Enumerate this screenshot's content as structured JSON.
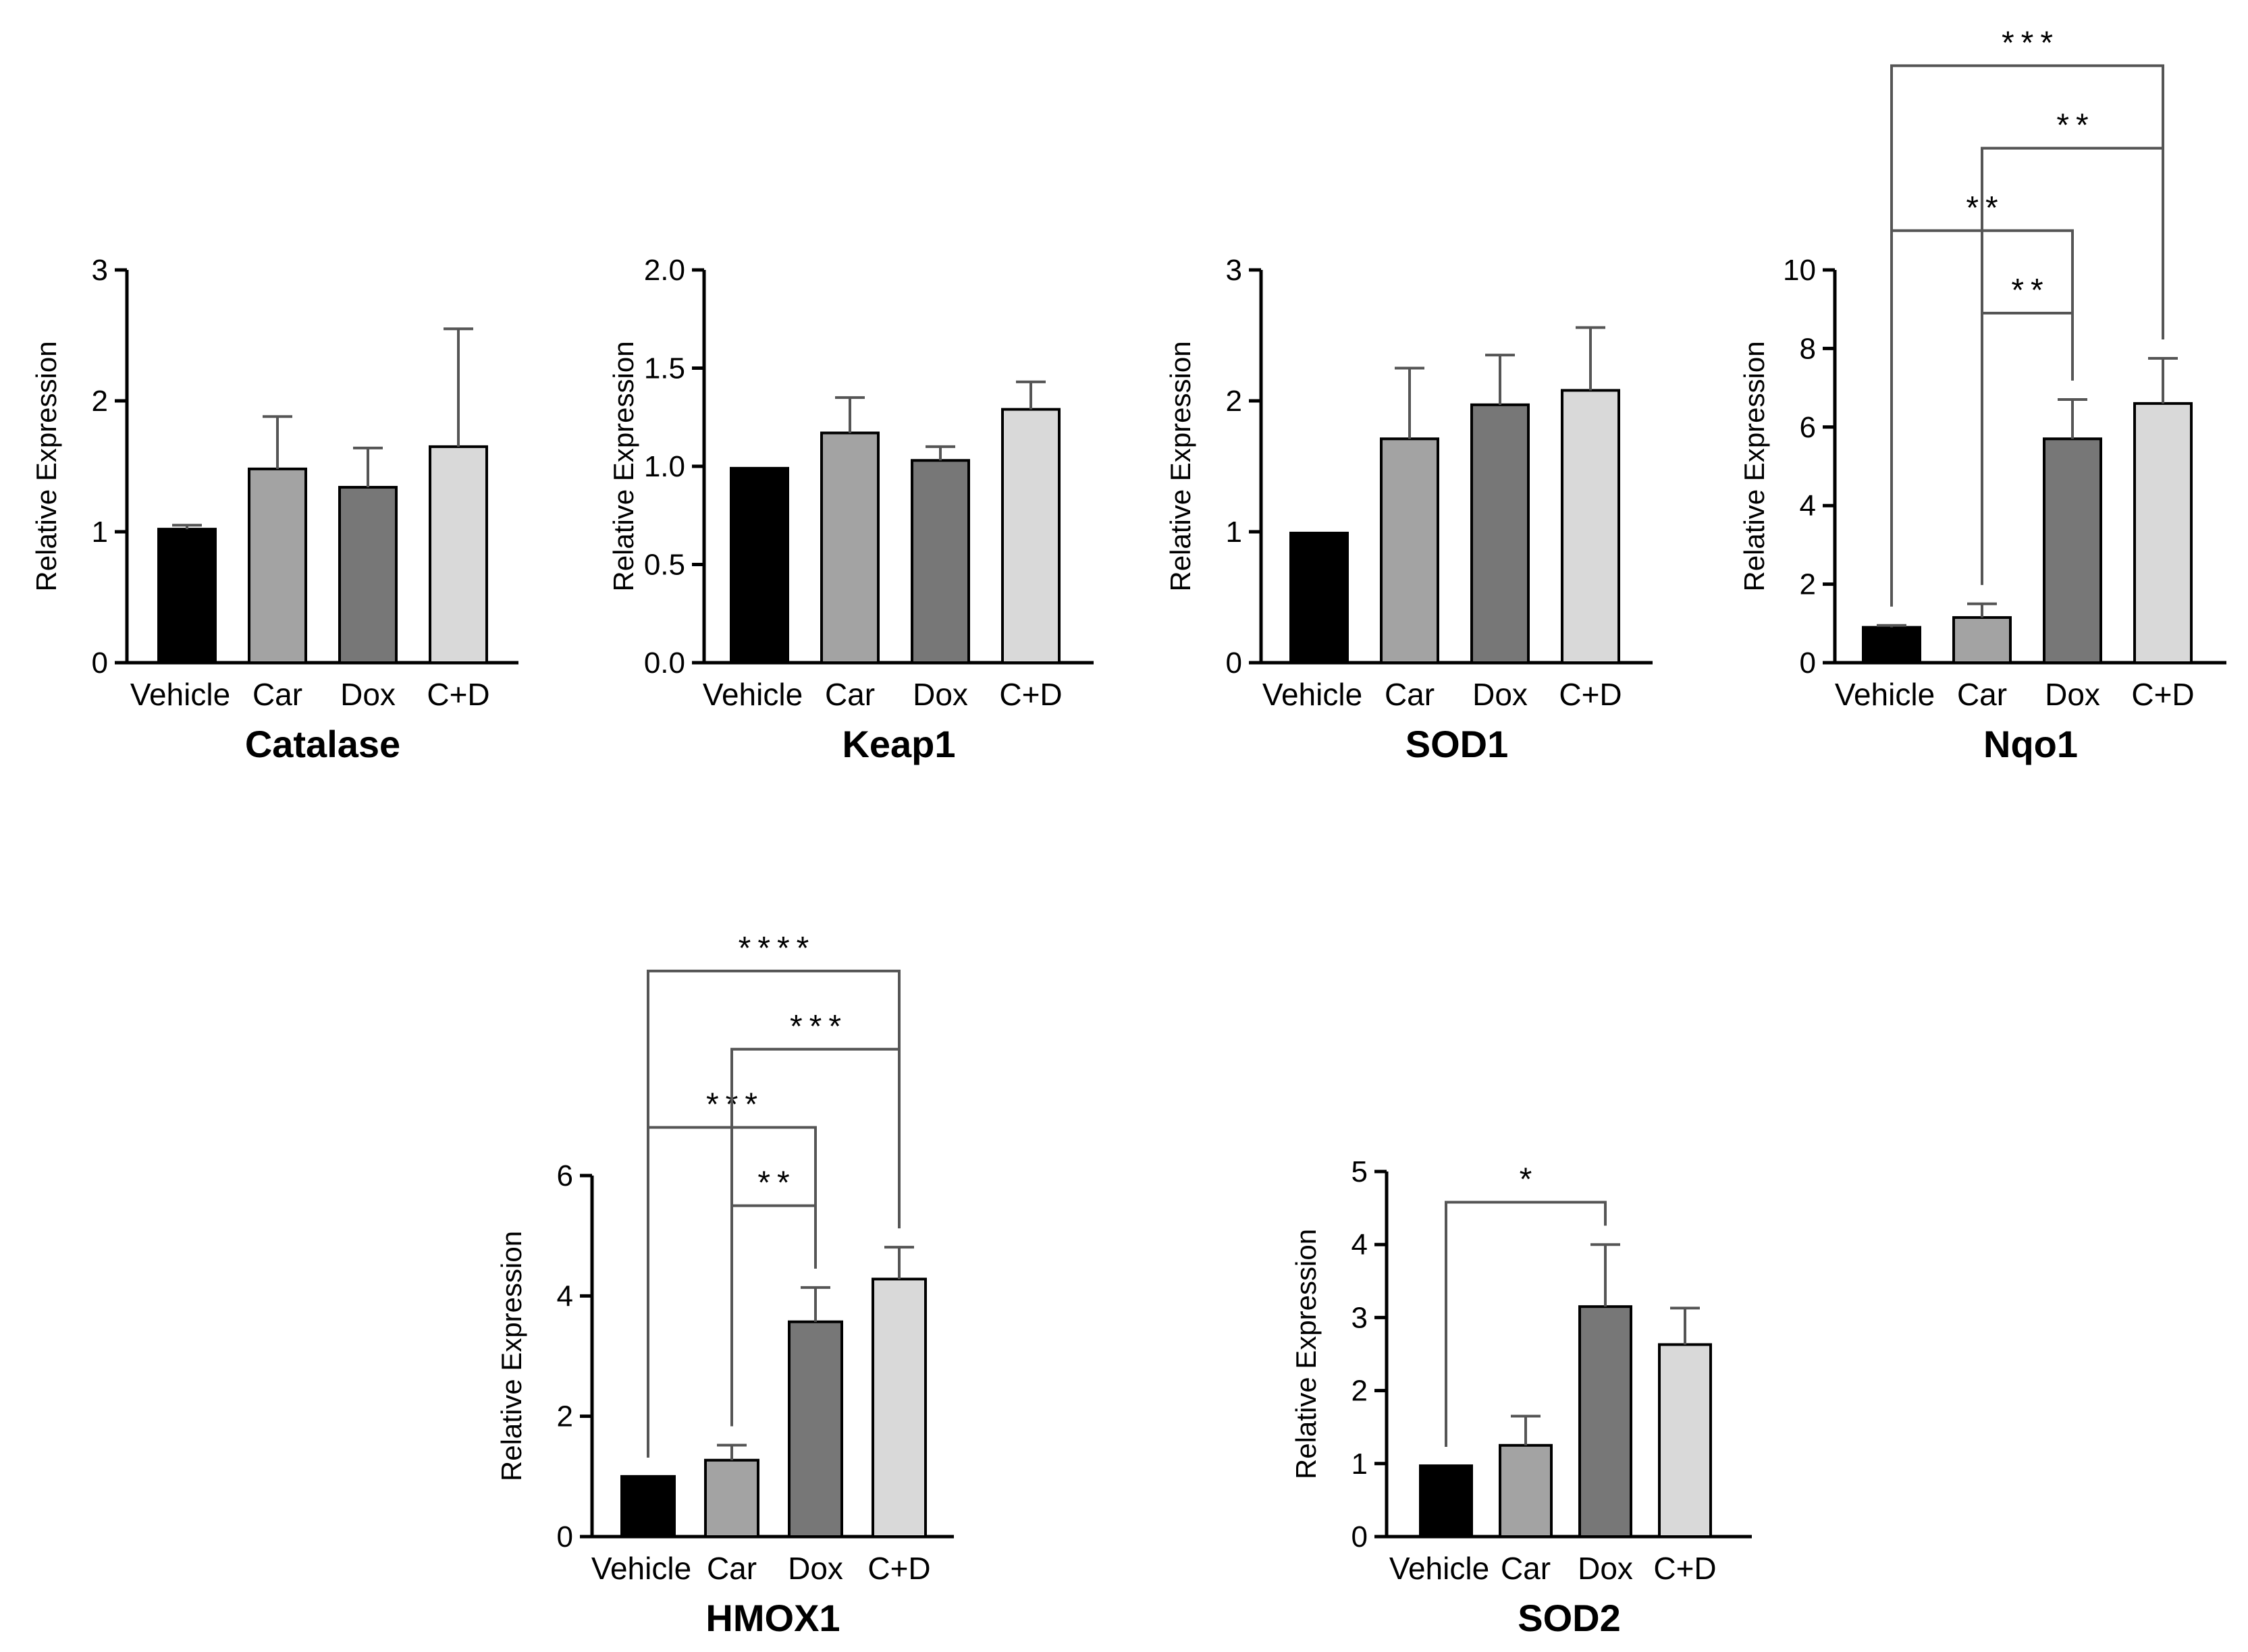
{
  "chart_data": [
    {
      "type": "bar",
      "title": "Catalase",
      "ylabel": "Relative Expression",
      "xlabel": "",
      "categories": [
        "Vehicle",
        "Car",
        "Dox",
        "C+D"
      ],
      "values": [
        1.02,
        1.48,
        1.34,
        1.65
      ],
      "errors": [
        0.03,
        0.4,
        0.3,
        0.9
      ],
      "ylim": [
        0,
        3
      ],
      "yticks": [
        0,
        1,
        2,
        3
      ],
      "ytick_labels": [
        "0",
        "1",
        "2",
        "3"
      ],
      "colors": [
        "#000000",
        "#a3a3a3",
        "#777777",
        "#d9d9d9"
      ],
      "significance": []
    },
    {
      "type": "bar",
      "title": "Keap1",
      "ylabel": "Relative Expression",
      "xlabel": "",
      "categories": [
        "Vehicle",
        "Car",
        "Dox",
        "C+D"
      ],
      "values": [
        0.99,
        1.17,
        1.03,
        1.29
      ],
      "errors": [
        0.0,
        0.18,
        0.07,
        0.14
      ],
      "ylim": [
        0,
        2
      ],
      "yticks": [
        0,
        0.5,
        1,
        1.5,
        2
      ],
      "ytick_labels": [
        "0.0",
        "0.5",
        "1.0",
        "1.5",
        "2.0"
      ],
      "colors": [
        "#000000",
        "#a3a3a3",
        "#777777",
        "#d9d9d9"
      ],
      "significance": []
    },
    {
      "type": "bar",
      "title": "SOD1",
      "ylabel": "Relative Expression",
      "xlabel": "",
      "categories": [
        "Vehicle",
        "Car",
        "Dox",
        "C+D"
      ],
      "values": [
        0.99,
        1.71,
        1.97,
        2.08
      ],
      "errors": [
        0.0,
        0.54,
        0.38,
        0.48
      ],
      "ylim": [
        0,
        3
      ],
      "yticks": [
        0,
        1,
        2,
        3
      ],
      "ytick_labels": [
        "0",
        "1",
        "2",
        "3"
      ],
      "colors": [
        "#000000",
        "#a3a3a3",
        "#777777",
        "#d9d9d9"
      ],
      "significance": []
    },
    {
      "type": "bar",
      "title": "Nqo1",
      "ylabel": "Relative Expression",
      "xlabel": "",
      "categories": [
        "Vehicle",
        "Car",
        "Dox",
        "C+D"
      ],
      "values": [
        0.9,
        1.15,
        5.7,
        6.6
      ],
      "errors": [
        0.05,
        0.35,
        1.0,
        1.15
      ],
      "ylim": [
        0,
        10
      ],
      "yticks": [
        0,
        2,
        4,
        6,
        8,
        10
      ],
      "ytick_labels": [
        "0",
        "2",
        "4",
        "6",
        "8",
        "10"
      ],
      "colors": [
        "#000000",
        "#a3a3a3",
        "#777777",
        "#d9d9d9"
      ],
      "significance": [
        {
          "from": 1,
          "to": 2,
          "label": "**",
          "level": 8.9
        },
        {
          "from": 0,
          "to": 2,
          "label": "**",
          "level": 11.0
        },
        {
          "from": 1,
          "to": 3,
          "label": "**",
          "level": 13.1
        },
        {
          "from": 0,
          "to": 3,
          "label": "***",
          "level": 15.2
        }
      ]
    },
    {
      "type": "bar",
      "title": "HMOX1",
      "ylabel": "Relative Expression",
      "xlabel": "",
      "categories": [
        "Vehicle",
        "Car",
        "Dox",
        "C+D"
      ],
      "values": [
        1.0,
        1.27,
        3.57,
        4.28
      ],
      "errors": [
        0.0,
        0.25,
        0.57,
        0.53
      ],
      "ylim": [
        0,
        6
      ],
      "yticks": [
        0,
        2,
        4,
        6
      ],
      "ytick_labels": [
        "0",
        "2",
        "4",
        "6"
      ],
      "colors": [
        "#000000",
        "#a3a3a3",
        "#777777",
        "#d9d9d9"
      ],
      "significance": [
        {
          "from": 1,
          "to": 2,
          "label": "**",
          "level": 5.5
        },
        {
          "from": 0,
          "to": 2,
          "label": "***",
          "level": 6.8
        },
        {
          "from": 1,
          "to": 3,
          "label": "***",
          "level": 8.1
        },
        {
          "from": 0,
          "to": 3,
          "label": "****",
          "level": 9.4
        }
      ]
    },
    {
      "type": "bar",
      "title": "SOD2",
      "ylabel": "Relative Expression",
      "xlabel": "",
      "categories": [
        "Vehicle",
        "Car",
        "Dox",
        "C+D"
      ],
      "values": [
        0.97,
        1.25,
        3.15,
        2.63
      ],
      "errors": [
        0.0,
        0.4,
        0.85,
        0.5
      ],
      "ylim": [
        0,
        5
      ],
      "yticks": [
        0,
        1,
        2,
        3,
        4,
        5
      ],
      "ytick_labels": [
        "0",
        "1",
        "2",
        "3",
        "4",
        "5"
      ],
      "colors": [
        "#000000",
        "#a3a3a3",
        "#777777",
        "#d9d9d9"
      ],
      "significance": [
        {
          "from": 0,
          "to": 2,
          "label": "*",
          "level": 4.58
        }
      ]
    }
  ]
}
